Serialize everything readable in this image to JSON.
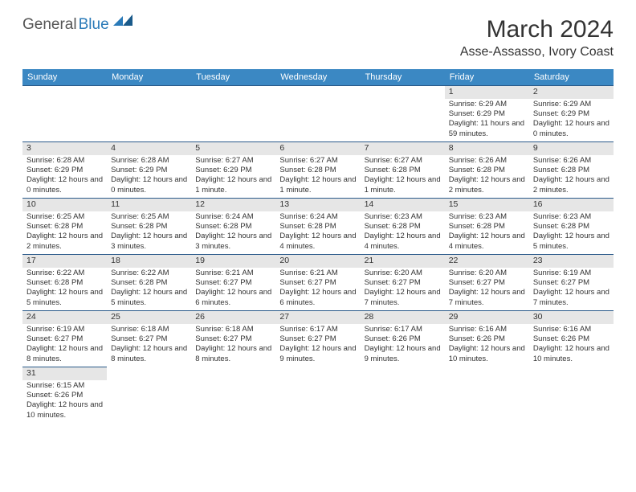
{
  "logo": {
    "general": "General",
    "blue": "Blue"
  },
  "title": "March 2024",
  "location": "Asse-Assasso, Ivory Coast",
  "header_bg": "#3b88c3",
  "daynum_bg": "#e6e6e6",
  "row_border": "#2a5a8a",
  "days": [
    "Sunday",
    "Monday",
    "Tuesday",
    "Wednesday",
    "Thursday",
    "Friday",
    "Saturday"
  ],
  "weeks": [
    [
      null,
      null,
      null,
      null,
      null,
      {
        "n": "1",
        "sr": "Sunrise: 6:29 AM",
        "ss": "Sunset: 6:29 PM",
        "dl": "Daylight: 11 hours and 59 minutes."
      },
      {
        "n": "2",
        "sr": "Sunrise: 6:29 AM",
        "ss": "Sunset: 6:29 PM",
        "dl": "Daylight: 12 hours and 0 minutes."
      }
    ],
    [
      {
        "n": "3",
        "sr": "Sunrise: 6:28 AM",
        "ss": "Sunset: 6:29 PM",
        "dl": "Daylight: 12 hours and 0 minutes."
      },
      {
        "n": "4",
        "sr": "Sunrise: 6:28 AM",
        "ss": "Sunset: 6:29 PM",
        "dl": "Daylight: 12 hours and 0 minutes."
      },
      {
        "n": "5",
        "sr": "Sunrise: 6:27 AM",
        "ss": "Sunset: 6:29 PM",
        "dl": "Daylight: 12 hours and 1 minute."
      },
      {
        "n": "6",
        "sr": "Sunrise: 6:27 AM",
        "ss": "Sunset: 6:28 PM",
        "dl": "Daylight: 12 hours and 1 minute."
      },
      {
        "n": "7",
        "sr": "Sunrise: 6:27 AM",
        "ss": "Sunset: 6:28 PM",
        "dl": "Daylight: 12 hours and 1 minute."
      },
      {
        "n": "8",
        "sr": "Sunrise: 6:26 AM",
        "ss": "Sunset: 6:28 PM",
        "dl": "Daylight: 12 hours and 2 minutes."
      },
      {
        "n": "9",
        "sr": "Sunrise: 6:26 AM",
        "ss": "Sunset: 6:28 PM",
        "dl": "Daylight: 12 hours and 2 minutes."
      }
    ],
    [
      {
        "n": "10",
        "sr": "Sunrise: 6:25 AM",
        "ss": "Sunset: 6:28 PM",
        "dl": "Daylight: 12 hours and 2 minutes."
      },
      {
        "n": "11",
        "sr": "Sunrise: 6:25 AM",
        "ss": "Sunset: 6:28 PM",
        "dl": "Daylight: 12 hours and 3 minutes."
      },
      {
        "n": "12",
        "sr": "Sunrise: 6:24 AM",
        "ss": "Sunset: 6:28 PM",
        "dl": "Daylight: 12 hours and 3 minutes."
      },
      {
        "n": "13",
        "sr": "Sunrise: 6:24 AM",
        "ss": "Sunset: 6:28 PM",
        "dl": "Daylight: 12 hours and 4 minutes."
      },
      {
        "n": "14",
        "sr": "Sunrise: 6:23 AM",
        "ss": "Sunset: 6:28 PM",
        "dl": "Daylight: 12 hours and 4 minutes."
      },
      {
        "n": "15",
        "sr": "Sunrise: 6:23 AM",
        "ss": "Sunset: 6:28 PM",
        "dl": "Daylight: 12 hours and 4 minutes."
      },
      {
        "n": "16",
        "sr": "Sunrise: 6:23 AM",
        "ss": "Sunset: 6:28 PM",
        "dl": "Daylight: 12 hours and 5 minutes."
      }
    ],
    [
      {
        "n": "17",
        "sr": "Sunrise: 6:22 AM",
        "ss": "Sunset: 6:28 PM",
        "dl": "Daylight: 12 hours and 5 minutes."
      },
      {
        "n": "18",
        "sr": "Sunrise: 6:22 AM",
        "ss": "Sunset: 6:28 PM",
        "dl": "Daylight: 12 hours and 5 minutes."
      },
      {
        "n": "19",
        "sr": "Sunrise: 6:21 AM",
        "ss": "Sunset: 6:27 PM",
        "dl": "Daylight: 12 hours and 6 minutes."
      },
      {
        "n": "20",
        "sr": "Sunrise: 6:21 AM",
        "ss": "Sunset: 6:27 PM",
        "dl": "Daylight: 12 hours and 6 minutes."
      },
      {
        "n": "21",
        "sr": "Sunrise: 6:20 AM",
        "ss": "Sunset: 6:27 PM",
        "dl": "Daylight: 12 hours and 7 minutes."
      },
      {
        "n": "22",
        "sr": "Sunrise: 6:20 AM",
        "ss": "Sunset: 6:27 PM",
        "dl": "Daylight: 12 hours and 7 minutes."
      },
      {
        "n": "23",
        "sr": "Sunrise: 6:19 AM",
        "ss": "Sunset: 6:27 PM",
        "dl": "Daylight: 12 hours and 7 minutes."
      }
    ],
    [
      {
        "n": "24",
        "sr": "Sunrise: 6:19 AM",
        "ss": "Sunset: 6:27 PM",
        "dl": "Daylight: 12 hours and 8 minutes."
      },
      {
        "n": "25",
        "sr": "Sunrise: 6:18 AM",
        "ss": "Sunset: 6:27 PM",
        "dl": "Daylight: 12 hours and 8 minutes."
      },
      {
        "n": "26",
        "sr": "Sunrise: 6:18 AM",
        "ss": "Sunset: 6:27 PM",
        "dl": "Daylight: 12 hours and 8 minutes."
      },
      {
        "n": "27",
        "sr": "Sunrise: 6:17 AM",
        "ss": "Sunset: 6:27 PM",
        "dl": "Daylight: 12 hours and 9 minutes."
      },
      {
        "n": "28",
        "sr": "Sunrise: 6:17 AM",
        "ss": "Sunset: 6:26 PM",
        "dl": "Daylight: 12 hours and 9 minutes."
      },
      {
        "n": "29",
        "sr": "Sunrise: 6:16 AM",
        "ss": "Sunset: 6:26 PM",
        "dl": "Daylight: 12 hours and 10 minutes."
      },
      {
        "n": "30",
        "sr": "Sunrise: 6:16 AM",
        "ss": "Sunset: 6:26 PM",
        "dl": "Daylight: 12 hours and 10 minutes."
      }
    ],
    [
      {
        "n": "31",
        "sr": "Sunrise: 6:15 AM",
        "ss": "Sunset: 6:26 PM",
        "dl": "Daylight: 12 hours and 10 minutes."
      },
      null,
      null,
      null,
      null,
      null,
      null
    ]
  ]
}
